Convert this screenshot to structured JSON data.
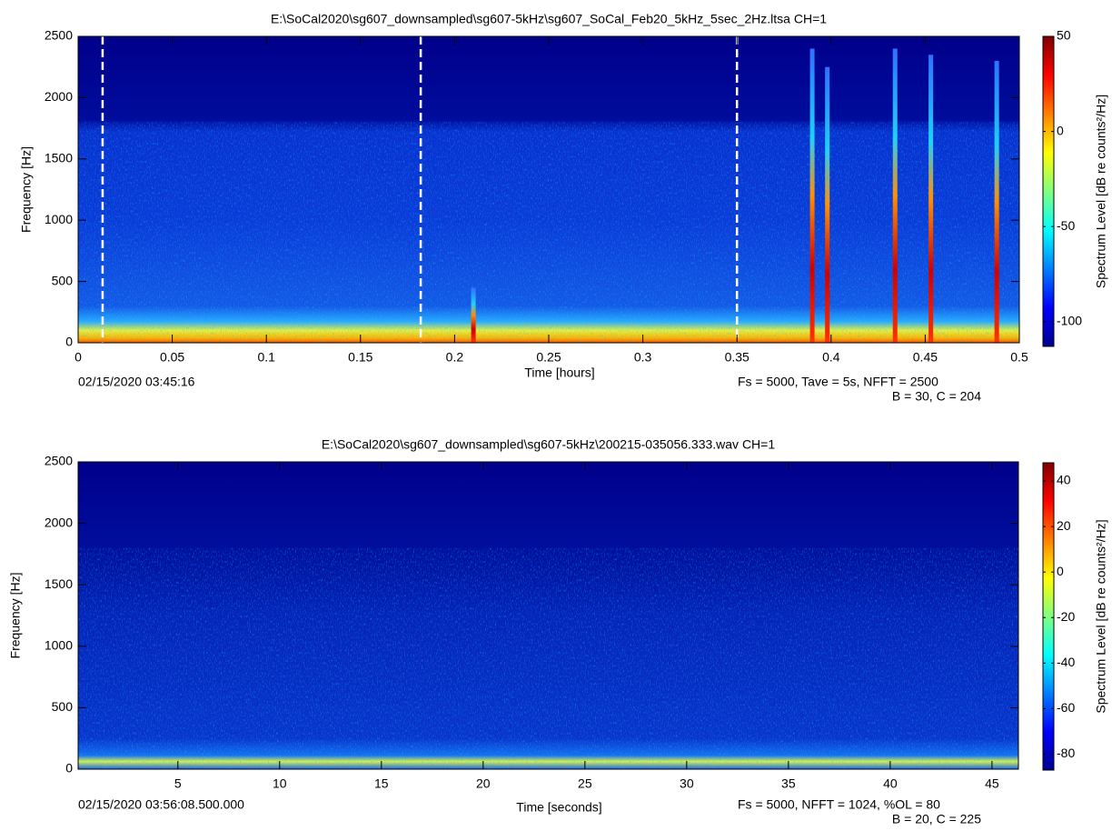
{
  "chart_data": [
    {
      "type": "spectrogram",
      "title": "E:\\SoCal2020\\sg607_downsampled\\sg607-5kHz\\sg607_SoCal_Feb20_5kHz_5sec_2Hz.ltsa CH=1",
      "xlabel": "Time [hours]",
      "ylabel": "Frequency [Hz]",
      "colorbar_label": "Spectrum Level [dB re counts²/Hz]",
      "start_time": "02/15/2020 03:45:16",
      "params": "Fs = 5000, Tave = 5s, NFFT = 2500",
      "params2": "B = 30, C = 204",
      "xlim": [
        0,
        0.5
      ],
      "xticks": [
        0,
        0.05,
        0.1,
        0.15,
        0.2,
        0.25,
        0.3,
        0.35,
        0.4,
        0.45,
        0.5
      ],
      "ylim": [
        0,
        2500
      ],
      "yticks": [
        0,
        500,
        1000,
        1500,
        2000,
        2500
      ],
      "clim": [
        -113,
        50
      ],
      "cticks": [
        -100,
        -50,
        0,
        50
      ],
      "markers": [
        0.013,
        0.182,
        0.35
      ],
      "events": [
        {
          "x": 0.21,
          "top": 450
        },
        {
          "x": 0.39,
          "top": 2400
        },
        {
          "x": 0.398,
          "top": 2250
        },
        {
          "x": 0.434,
          "top": 2400
        },
        {
          "x": 0.453,
          "top": 2350
        },
        {
          "x": 0.488,
          "top": 2300
        }
      ]
    },
    {
      "type": "spectrogram",
      "title": "E:\\SoCal2020\\sg607_downsampled\\sg607-5kHz\\200215-035056.333.wav CH=1",
      "xlabel": "Time [seconds]",
      "ylabel": "Frequency [Hz]",
      "colorbar_label": "Spectrum Level [dB re counts²/Hz]",
      "start_time": "02/15/2020 03:56:08.500.000",
      "params": "Fs = 5000, NFFT = 1024, %OL = 80",
      "params2": "B = 20, C = 225",
      "xlim": [
        0.1,
        46.3
      ],
      "xticks": [
        5,
        10,
        15,
        20,
        25,
        30,
        35,
        40,
        45
      ],
      "ylim": [
        0,
        2500
      ],
      "yticks": [
        0,
        500,
        1000,
        1500,
        2000,
        2500
      ],
      "clim": [
        -87,
        48
      ],
      "cticks": [
        -80,
        -60,
        -40,
        -20,
        0,
        20,
        40
      ]
    }
  ]
}
